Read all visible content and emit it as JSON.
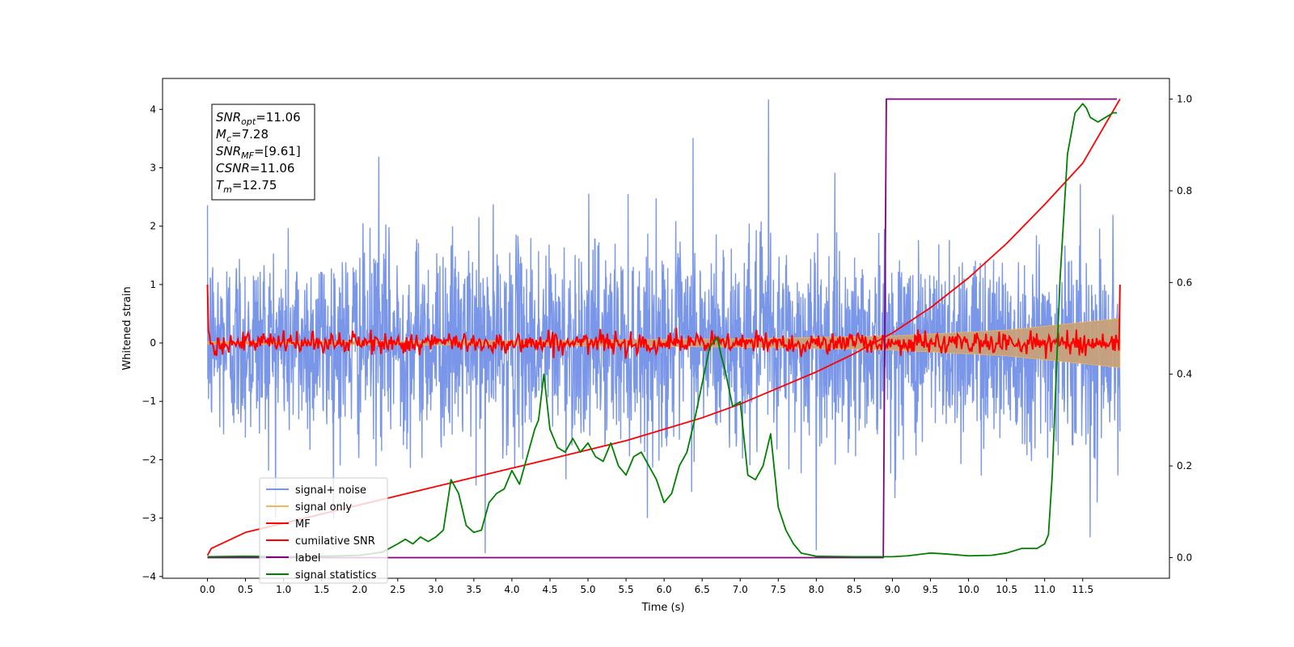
{
  "chart_data": {
    "type": "line",
    "xlabel": "Time (s)",
    "ylabel": "Whitened strain",
    "xlim": [
      -0.59,
      12.64
    ],
    "ylim_left": [
      -4.03,
      4.53
    ],
    "ylim_right": [
      -0.045,
      1.045
    ],
    "x_ticks": [
      "0.0",
      "0.5",
      "1.0",
      "1.5",
      "2.0",
      "2.5",
      "3.0",
      "3.5",
      "4.0",
      "4.5",
      "5.0",
      "5.5",
      "6.0",
      "6.5",
      "7.0",
      "7.5",
      "8.0",
      "8.5",
      "9.0",
      "9.5",
      "10.0",
      "10.5",
      "11.0",
      "11.5"
    ],
    "y_ticks_left": [
      "4",
      "3",
      "2",
      "1",
      "0",
      "−1",
      "−2",
      "−3",
      "−4"
    ],
    "y_ticks_right": [
      "1.0",
      "0.8",
      "0.6",
      "0.4",
      "0.2",
      "0.0"
    ],
    "grid": false,
    "legend_position": "lower-left",
    "annotation": {
      "lines": [
        {
          "sym": "SNR",
          "sub": "opt",
          "val": "=11.06"
        },
        {
          "sym": "M",
          "sub": "c",
          "val": "=7.28"
        },
        {
          "sym": "SNR",
          "sub": "MF",
          "val": "=[9.61]"
        },
        {
          "sym": "CSNR",
          "sub": "",
          "val": "=11.06"
        },
        {
          "sym": "T",
          "sub": "m",
          "val": "=12.75"
        }
      ]
    },
    "series": [
      {
        "name": "signal+ noise",
        "color": "#7a96e8",
        "axis": "left",
        "style": "noise",
        "x_range": [
          0.0,
          11.99
        ],
        "sigma": 0.85,
        "peaks": [
          [
            7.37,
            4.17
          ],
          [
            3.65,
            -3.6
          ],
          [
            8.0,
            -3.55
          ],
          [
            11.6,
            -3.33
          ],
          [
            6.38,
            3.51
          ],
          [
            2.25,
            3.19
          ]
        ]
      },
      {
        "name": "signal only",
        "color": "#f5b65a",
        "axis": "left",
        "style": "envelope",
        "x": [
          0.0,
          4.0,
          7.0,
          9.0,
          10.5,
          11.99
        ],
        "amplitude": [
          0.02,
          0.04,
          0.07,
          0.12,
          0.22,
          0.42
        ]
      },
      {
        "name": "MF",
        "color": "#ff0000",
        "axis": "left",
        "style": "mf",
        "start": 1.0,
        "oscillation": 0.09
      },
      {
        "name": "cumilative SNR",
        "color": "#ff0000",
        "axis": "right",
        "x": [
          0.0,
          0.05,
          0.5,
          1.0,
          1.5,
          2.0,
          2.5,
          3.0,
          3.5,
          4.0,
          4.5,
          5.0,
          5.5,
          6.0,
          6.5,
          7.0,
          7.5,
          8.0,
          8.5,
          9.0,
          9.5,
          10.0,
          10.5,
          11.0,
          11.5,
          11.99
        ],
        "values": [
          0.005,
          0.02,
          0.055,
          0.075,
          0.095,
          0.115,
          0.135,
          0.155,
          0.175,
          0.195,
          0.215,
          0.235,
          0.255,
          0.28,
          0.305,
          0.335,
          0.37,
          0.405,
          0.445,
          0.49,
          0.545,
          0.61,
          0.685,
          0.77,
          0.86,
          1.0
        ]
      },
      {
        "name": "label",
        "color": "#800080",
        "axis": "right",
        "x": [
          0.0,
          8.88,
          8.92,
          11.95
        ],
        "values": [
          0.0,
          0.0,
          1.0,
          1.0
        ]
      },
      {
        "name": "signal statistics",
        "color": "#008000",
        "axis": "right",
        "x": [
          0.0,
          0.5,
          1.0,
          1.5,
          2.0,
          2.3,
          2.5,
          2.6,
          2.7,
          2.8,
          2.9,
          3.0,
          3.1,
          3.2,
          3.3,
          3.4,
          3.5,
          3.6,
          3.7,
          3.8,
          3.9,
          4.0,
          4.1,
          4.2,
          4.3,
          4.35,
          4.42,
          4.5,
          4.6,
          4.7,
          4.8,
          4.9,
          5.0,
          5.1,
          5.2,
          5.3,
          5.4,
          5.5,
          5.6,
          5.7,
          5.8,
          5.9,
          6.0,
          6.1,
          6.2,
          6.3,
          6.4,
          6.5,
          6.55,
          6.6,
          6.7,
          6.75,
          6.8,
          6.9,
          7.0,
          7.1,
          7.2,
          7.3,
          7.4,
          7.5,
          7.6,
          7.7,
          7.8,
          8.0,
          8.5,
          9.0,
          9.2,
          9.5,
          9.7,
          10.0,
          10.3,
          10.5,
          10.7,
          10.9,
          11.0,
          11.05,
          11.1,
          11.2,
          11.3,
          11.4,
          11.5,
          11.55,
          11.6,
          11.7,
          11.8,
          11.9,
          11.95
        ],
        "values": [
          0.002,
          0.003,
          0.002,
          0.003,
          0.005,
          0.012,
          0.03,
          0.04,
          0.03,
          0.045,
          0.035,
          0.045,
          0.06,
          0.17,
          0.14,
          0.07,
          0.055,
          0.06,
          0.12,
          0.14,
          0.15,
          0.19,
          0.16,
          0.22,
          0.28,
          0.3,
          0.4,
          0.28,
          0.24,
          0.23,
          0.26,
          0.23,
          0.25,
          0.22,
          0.21,
          0.25,
          0.2,
          0.18,
          0.22,
          0.23,
          0.2,
          0.17,
          0.12,
          0.14,
          0.2,
          0.23,
          0.3,
          0.38,
          0.42,
          0.46,
          0.48,
          0.44,
          0.41,
          0.33,
          0.34,
          0.18,
          0.17,
          0.2,
          0.27,
          0.11,
          0.06,
          0.03,
          0.01,
          0.003,
          0.002,
          0.002,
          0.004,
          0.01,
          0.008,
          0.004,
          0.005,
          0.01,
          0.02,
          0.02,
          0.03,
          0.05,
          0.18,
          0.6,
          0.88,
          0.97,
          0.99,
          0.98,
          0.96,
          0.95,
          0.96,
          0.97,
          0.97
        ]
      }
    ]
  }
}
